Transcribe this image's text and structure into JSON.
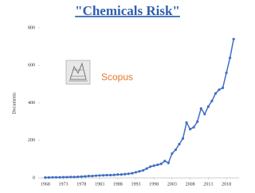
{
  "chart_data": {
    "type": "line",
    "title": "\"Chemicals Risk\"",
    "y_label": "Documents",
    "annotation": "Scopus",
    "x": [
      1968,
      1969,
      1970,
      1971,
      1972,
      1973,
      1974,
      1975,
      1976,
      1977,
      1978,
      1979,
      1980,
      1981,
      1982,
      1983,
      1984,
      1985,
      1986,
      1987,
      1988,
      1989,
      1990,
      1991,
      1992,
      1993,
      1994,
      1995,
      1996,
      1997,
      1998,
      1999,
      2000,
      2001,
      2002,
      2003,
      2004,
      2005,
      2006,
      2007,
      2008,
      2009,
      2010,
      2011,
      2012,
      2013,
      2014,
      2015,
      2016,
      2017,
      2018,
      2019,
      2020
    ],
    "series": [
      {
        "color": "#3f6fc4",
        "values": [
          2,
          2,
          3,
          3,
          3,
          4,
          4,
          5,
          5,
          6,
          7,
          8,
          10,
          10,
          12,
          13,
          14,
          15,
          15,
          16,
          18,
          18,
          20,
          22,
          25,
          30,
          35,
          40,
          50,
          60,
          65,
          70,
          75,
          90,
          80,
          130,
          150,
          180,
          210,
          295,
          260,
          270,
          300,
          370,
          340,
          380,
          410,
          450,
          470,
          480,
          560,
          640,
          740
        ]
      }
    ],
    "xlim": [
      1966.5,
      2021.5
    ],
    "xticks": [
      1968,
      1973,
      1978,
      1983,
      1988,
      1993,
      1998,
      2003,
      2008,
      2013,
      2018
    ],
    "ylim": [
      0,
      800
    ],
    "yticks": [
      0,
      200,
      400,
      600,
      800
    ]
  }
}
